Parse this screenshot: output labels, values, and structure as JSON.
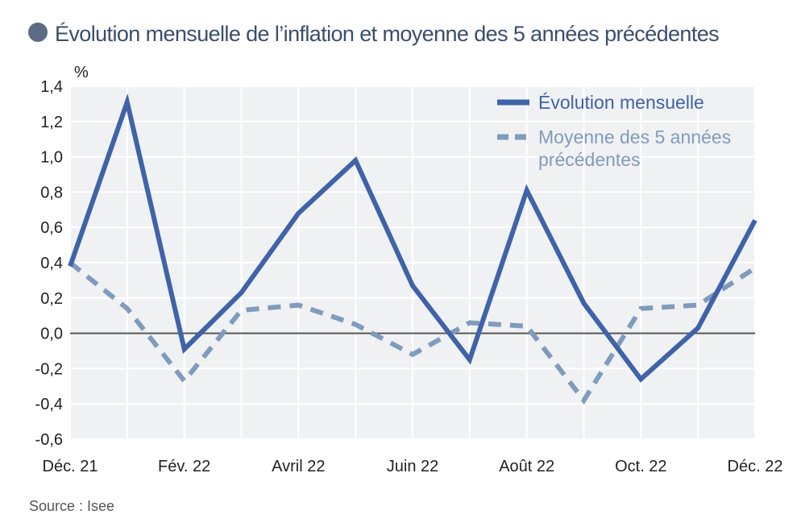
{
  "title": "Évolution mensuelle de l’inflation et moyenne des 5 années précédentes",
  "unit": "%",
  "source": "Source : Isee",
  "colors": {
    "title_bullet": "#5d6b84",
    "title_text": "#3a4e6e",
    "background": "#f0f1f3",
    "grid": "#ffffff",
    "zero_line": "#555555",
    "series_monthly": "#3f63a8",
    "series_average": "#7f9bbd"
  },
  "chart_data": {
    "type": "line",
    "title": "Évolution mensuelle de l’inflation et moyenne des 5 années précédentes",
    "ylabel": "%",
    "xlabel": "",
    "ylim": [
      -0.6,
      1.4
    ],
    "yticks": [
      "1,4",
      "1,2",
      "1,0",
      "0,8",
      "0,6",
      "0,4",
      "0,2",
      "0,0",
      "-0,2",
      "-0,4",
      "-0,6"
    ],
    "ytick_values": [
      1.4,
      1.2,
      1.0,
      0.8,
      0.6,
      0.4,
      0.2,
      0.0,
      -0.2,
      -0.4,
      -0.6
    ],
    "x_labels": [
      "Déc. 21",
      "Fév. 22",
      "Avril 22",
      "Juin 22",
      "Août 22",
      "Oct. 22",
      "Déc. 22"
    ],
    "x_label_indices": [
      0,
      2,
      4,
      6,
      8,
      10,
      12
    ],
    "grid": true,
    "legend_position": "top-right",
    "series": [
      {
        "name": "Évolution mensuelle",
        "style": "solid",
        "values": [
          0.38,
          1.31,
          -0.09,
          0.23,
          0.68,
          0.98,
          0.27,
          -0.15,
          0.81,
          0.17,
          -0.26,
          0.03,
          0.64
        ]
      },
      {
        "name": "Moyenne des 5 années précédentes",
        "legend_lines": [
          "Moyenne des 5 années",
          "précédentes"
        ],
        "style": "dashed",
        "values": [
          0.4,
          0.14,
          -0.27,
          0.13,
          0.16,
          0.05,
          -0.12,
          0.06,
          0.04,
          -0.38,
          0.14,
          0.16,
          0.37
        ]
      }
    ]
  }
}
